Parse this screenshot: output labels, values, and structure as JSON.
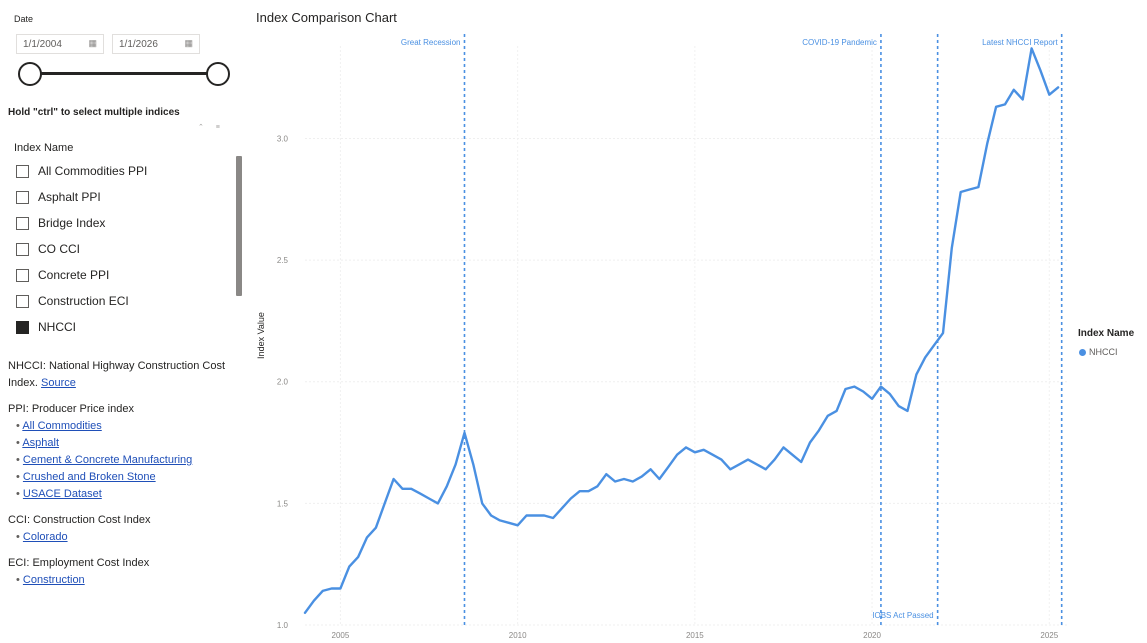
{
  "filters": {
    "date_label": "Date",
    "start_date": "1/1/2004",
    "end_date": "1/1/2026",
    "ctrl_hint": "Hold \"ctrl\" to select multiple indices",
    "index_header": "Index Name",
    "items": [
      {
        "label": "All Commodities PPI",
        "checked": false
      },
      {
        "label": "Asphalt PPI",
        "checked": false
      },
      {
        "label": "Bridge Index",
        "checked": false
      },
      {
        "label": "CO CCI",
        "checked": false
      },
      {
        "label": "Concrete PPI",
        "checked": false
      },
      {
        "label": "Construction ECI",
        "checked": false
      },
      {
        "label": "NHCCI",
        "checked": true
      }
    ]
  },
  "notes": {
    "nhcci_text": "NHCCI: National Highway Construction Cost Index.",
    "nhcci_link": "Source",
    "ppi_title": "PPI: Producer Price index",
    "ppi_links": [
      "All Commodities",
      "Asphalt",
      "Cement & Concrete Manufacturing",
      "Crushed and Broken Stone",
      "USACE Dataset"
    ],
    "cci_title": "CCI: Construction Cost Index",
    "cci_links": [
      "Colorado"
    ],
    "eci_title": "ECI: Employment Cost Index",
    "eci_links": [
      "Construction"
    ],
    "bullet": "•"
  },
  "chart_data": {
    "type": "line",
    "title": "Index Comparison Chart",
    "xlabel": "",
    "ylabel": "Index Value",
    "x_ticks": [
      "2005",
      "2010",
      "2015",
      "2020",
      "2025"
    ],
    "y_ticks": [
      "1.0",
      "1.5",
      "2.0",
      "2.5",
      "3.0"
    ],
    "xlim": [
      2004.0,
      2025.5
    ],
    "ylim": [
      1.0,
      3.38
    ],
    "grid": true,
    "legend": {
      "title": "Index Name",
      "position": "right"
    },
    "series": [
      {
        "name": "NHCCI",
        "color": "#4a90e2",
        "x": [
          2004.0,
          2004.25,
          2004.5,
          2004.75,
          2005.0,
          2005.25,
          2005.5,
          2005.75,
          2006.0,
          2006.25,
          2006.5,
          2006.75,
          2007.0,
          2007.25,
          2007.5,
          2007.75,
          2008.0,
          2008.25,
          2008.5,
          2008.75,
          2009.0,
          2009.25,
          2009.5,
          2009.75,
          2010.0,
          2010.25,
          2010.5,
          2010.75,
          2011.0,
          2011.25,
          2011.5,
          2011.75,
          2012.0,
          2012.25,
          2012.5,
          2012.75,
          2013.0,
          2013.25,
          2013.5,
          2013.75,
          2014.0,
          2014.25,
          2014.5,
          2014.75,
          2015.0,
          2015.25,
          2015.5,
          2015.75,
          2016.0,
          2016.25,
          2016.5,
          2016.75,
          2017.0,
          2017.25,
          2017.5,
          2017.75,
          2018.0,
          2018.25,
          2018.5,
          2018.75,
          2019.0,
          2019.25,
          2019.5,
          2019.75,
          2020.0,
          2020.25,
          2020.5,
          2020.75,
          2021.0,
          2021.25,
          2021.5,
          2021.75,
          2022.0,
          2022.25,
          2022.5,
          2022.75,
          2023.0,
          2023.25,
          2023.5,
          2023.75,
          2024.0,
          2024.25,
          2024.5,
          2024.75,
          2025.0,
          2025.25
        ],
        "values": [
          1.05,
          1.1,
          1.14,
          1.15,
          1.15,
          1.24,
          1.28,
          1.36,
          1.4,
          1.5,
          1.6,
          1.56,
          1.56,
          1.54,
          1.52,
          1.5,
          1.57,
          1.66,
          1.79,
          1.66,
          1.5,
          1.45,
          1.43,
          1.42,
          1.41,
          1.45,
          1.45,
          1.45,
          1.44,
          1.48,
          1.52,
          1.55,
          1.55,
          1.57,
          1.62,
          1.59,
          1.6,
          1.59,
          1.61,
          1.64,
          1.6,
          1.65,
          1.7,
          1.73,
          1.71,
          1.72,
          1.7,
          1.68,
          1.64,
          1.66,
          1.68,
          1.66,
          1.64,
          1.68,
          1.73,
          1.7,
          1.67,
          1.75,
          1.8,
          1.86,
          1.88,
          1.97,
          1.98,
          1.96,
          1.93,
          1.98,
          1.95,
          1.9,
          1.88,
          2.03,
          2.1,
          2.15,
          2.2,
          2.55,
          2.78,
          2.79,
          2.8,
          2.98,
          3.13,
          3.14,
          3.2,
          3.16,
          3.37,
          3.28,
          3.18,
          3.21
        ]
      }
    ],
    "reference_lines": [
      {
        "x": 2008.5,
        "label": "Great Recession",
        "label_pos": "top"
      },
      {
        "x": 2020.25,
        "label": "COVID-19 Pandemic",
        "label_pos": "top"
      },
      {
        "x": 2021.85,
        "label": "IOBS Act Passed",
        "label_pos": "bottom"
      },
      {
        "x": 2025.35,
        "label": "Latest NHCCI Report",
        "label_pos": "top"
      }
    ]
  }
}
